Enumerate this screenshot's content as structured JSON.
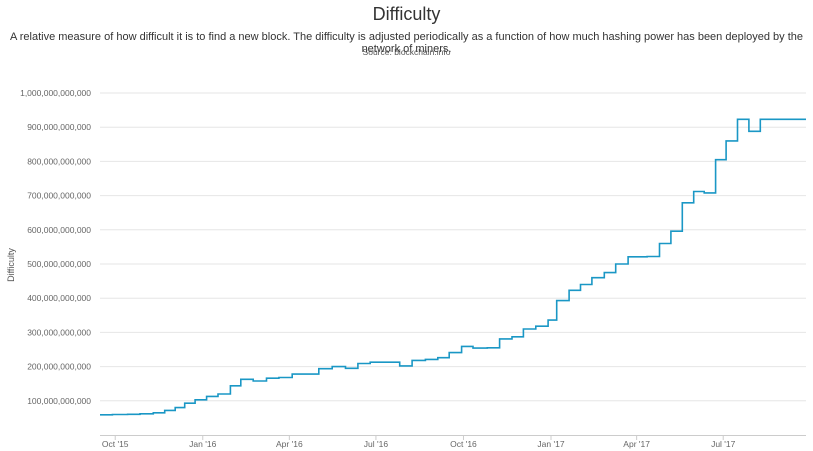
{
  "colors": {
    "line": "#1a97c5",
    "grid": "#e6e6e6",
    "axis": "#cccccc"
  },
  "chart_data": {
    "type": "line",
    "title": "Difficulty",
    "subtitle": "A relative measure of how difficult it is to find a new block. The difficulty is adjusted periodically as a function of how much hashing power has been deployed by the network of miners.",
    "source": "Source: blockchain.info",
    "xlabel": "",
    "ylabel": "Difficulty",
    "ylim": [
      0,
      1000000000000
    ],
    "xlim": [
      "2015-09-15",
      "2017-09-26"
    ],
    "grid": true,
    "y_ticks": [
      {
        "value": 100000000000,
        "label": "100,000,000,000"
      },
      {
        "value": 200000000000,
        "label": "200,000,000,000"
      },
      {
        "value": 300000000000,
        "label": "300,000,000,000"
      },
      {
        "value": 400000000000,
        "label": "400,000,000,000"
      },
      {
        "value": 500000000000,
        "label": "500,000,000,000"
      },
      {
        "value": 600000000000,
        "label": "600,000,000,000"
      },
      {
        "value": 700000000000,
        "label": "700,000,000,000"
      },
      {
        "value": 800000000000,
        "label": "800,000,000,000"
      },
      {
        "value": 900000000000,
        "label": "900,000,000,000"
      },
      {
        "value": 1000000000000,
        "label": "1,000,000,000,000"
      }
    ],
    "x_ticks": [
      {
        "value": "2015-10-01",
        "label": "Oct '15"
      },
      {
        "value": "2016-01-01",
        "label": "Jan '16"
      },
      {
        "value": "2016-04-01",
        "label": "Apr '16"
      },
      {
        "value": "2016-07-01",
        "label": "Jul '16"
      },
      {
        "value": "2016-10-01",
        "label": "Oct '16"
      },
      {
        "value": "2017-01-01",
        "label": "Jan '17"
      },
      {
        "value": "2017-04-01",
        "label": "Apr '17"
      },
      {
        "value": "2017-07-01",
        "label": "Jul '17"
      }
    ],
    "series": [
      {
        "points": [
          [
            "2015-09-15",
            59000000000
          ],
          [
            "2015-09-28",
            60000000000
          ],
          [
            "2015-10-14",
            60500000000
          ],
          [
            "2015-10-27",
            62000000000
          ],
          [
            "2015-11-10",
            65000000000
          ],
          [
            "2015-11-22",
            72000000000
          ],
          [
            "2015-12-03",
            80000000000
          ],
          [
            "2015-12-13",
            93000000000
          ],
          [
            "2015-12-24",
            103000000000
          ],
          [
            "2016-01-05",
            113000000000
          ],
          [
            "2016-01-17",
            120000000000
          ],
          [
            "2016-01-30",
            144000000000
          ],
          [
            "2016-02-10",
            163000000000
          ],
          [
            "2016-02-23",
            158000000000
          ],
          [
            "2016-03-08",
            166000000000
          ],
          [
            "2016-03-21",
            168000000000
          ],
          [
            "2016-04-04",
            178000000000
          ],
          [
            "2016-04-18",
            178000000000
          ],
          [
            "2016-05-02",
            194000000000
          ],
          [
            "2016-05-16",
            200000000000
          ],
          [
            "2016-05-30",
            195000000000
          ],
          [
            "2016-06-12",
            209000000000
          ],
          [
            "2016-06-25",
            213000000000
          ],
          [
            "2016-07-10",
            213000000000
          ],
          [
            "2016-07-26",
            202000000000
          ],
          [
            "2016-08-08",
            218000000000
          ],
          [
            "2016-08-22",
            221000000000
          ],
          [
            "2016-09-04",
            226000000000
          ],
          [
            "2016-09-16",
            241000000000
          ],
          [
            "2016-09-29",
            259000000000
          ],
          [
            "2016-10-11",
            254000000000
          ],
          [
            "2016-10-26",
            255000000000
          ],
          [
            "2016-11-08",
            281000000000
          ],
          [
            "2016-11-21",
            287000000000
          ],
          [
            "2016-12-03",
            310000000000
          ],
          [
            "2016-12-16",
            318000000000
          ],
          [
            "2016-12-29",
            336000000000
          ],
          [
            "2017-01-07",
            393000000000
          ],
          [
            "2017-01-20",
            423000000000
          ],
          [
            "2017-02-01",
            440000000000
          ],
          [
            "2017-02-13",
            460000000000
          ],
          [
            "2017-02-26",
            475000000000
          ],
          [
            "2017-03-10",
            500000000000
          ],
          [
            "2017-03-23",
            521000000000
          ],
          [
            "2017-04-05",
            521000000000
          ],
          [
            "2017-04-12",
            522000000000
          ],
          [
            "2017-04-25",
            560000000000
          ],
          [
            "2017-05-07",
            596000000000
          ],
          [
            "2017-05-19",
            679000000000
          ],
          [
            "2017-05-31",
            712000000000
          ],
          [
            "2017-06-11",
            708000000000
          ],
          [
            "2017-06-23",
            805000000000
          ],
          [
            "2017-07-04",
            860000000000
          ],
          [
            "2017-07-16",
            923000000000
          ],
          [
            "2017-07-28",
            888000000000
          ],
          [
            "2017-08-09",
            923000000000
          ],
          [
            "2017-08-22",
            923000000000
          ],
          [
            "2017-09-26",
            923000000000
          ]
        ]
      }
    ]
  }
}
